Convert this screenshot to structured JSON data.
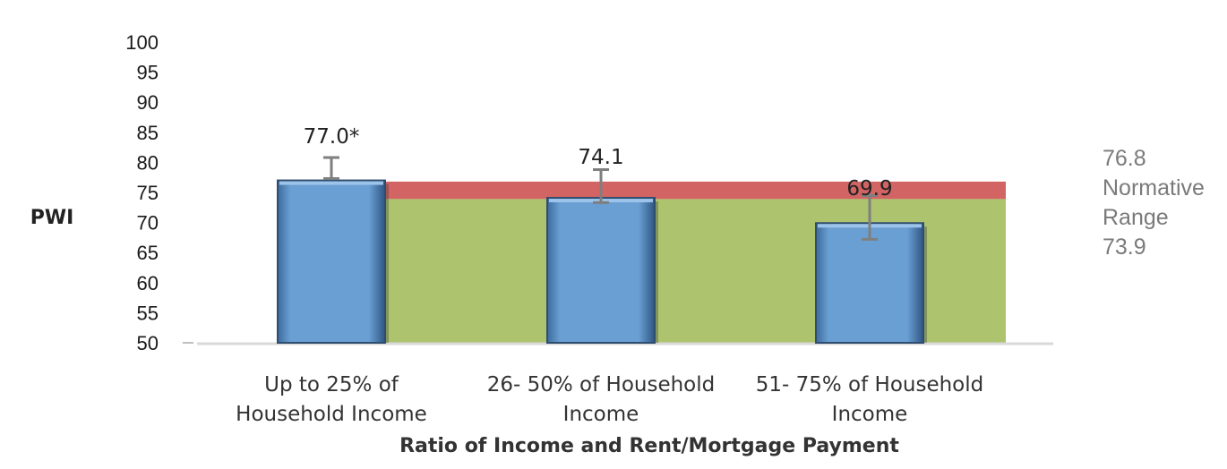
{
  "chart_data": {
    "type": "bar",
    "categories": [
      [
        "Up to 25% of",
        "Household Income"
      ],
      [
        "26- 50% of Household",
        "Income"
      ],
      [
        "51- 75% of Household",
        "Income"
      ]
    ],
    "values": [
      77.0,
      74.1,
      69.9
    ],
    "data_labels": [
      "77.0*",
      "74.1",
      "69.9"
    ],
    "error_bars": [
      [
        77.3,
        80.8
      ],
      [
        73.3,
        78.8
      ],
      [
        67.2,
        74.5
      ]
    ],
    "ylabel": "PWI",
    "xlabel": "Ratio of Income and Rent/Mortgage Payment",
    "ylim": [
      50,
      100
    ],
    "yticks": [
      100,
      95,
      90,
      85,
      80,
      75,
      70,
      65,
      60,
      55,
      50
    ],
    "grid": false,
    "normative_range": {
      "lower": 73.9,
      "upper": 76.8,
      "labels": [
        "76.8",
        "Normative",
        "Range",
        "73.9"
      ]
    },
    "colors": {
      "bar": "#6a9fd3",
      "bar_edge": "#2f4d6e",
      "band_upper": "#d26464",
      "band_lower": "#adc36e",
      "error_bar": "#7f7f7f"
    }
  }
}
